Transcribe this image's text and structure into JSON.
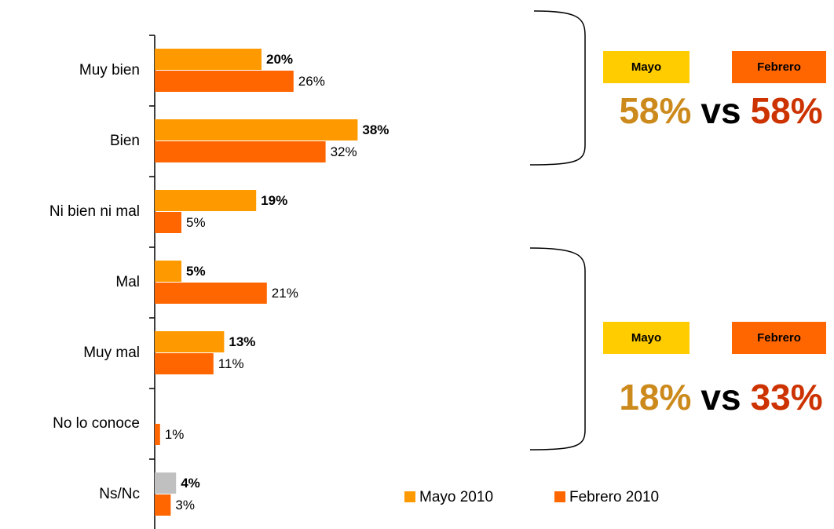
{
  "chart_data": {
    "type": "bar",
    "orientation": "horizontal",
    "categories": [
      "Muy bien",
      "Bien",
      "Ni bien ni mal",
      "Mal",
      "Muy mal",
      "No lo conoce",
      "Ns/Nc"
    ],
    "series": [
      {
        "name": "Mayo 2010",
        "color": "#ff9900",
        "colors": [
          "#ff9900",
          "#ff9900",
          "#ff9900",
          "#ff9900",
          "#ff9900",
          "#ff9900",
          "#c0c0c0"
        ],
        "values": [
          20,
          38,
          19,
          5,
          13,
          null,
          4
        ],
        "value_labels": [
          "20%",
          "38%",
          "19%",
          "5%",
          "13%",
          null,
          "4%"
        ]
      },
      {
        "name": "Febrero 2010",
        "color": "#ff6600",
        "values": [
          26,
          32,
          5,
          21,
          11,
          1,
          3
        ],
        "value_labels": [
          "26%",
          "32%",
          "5%",
          "21%",
          "11%",
          "1%",
          "3%"
        ]
      }
    ],
    "annotations": [
      {
        "mayo": "Mayo",
        "febrero": "Febrero",
        "mayo_total": "58%",
        "vs": "vs",
        "febrero_total": "58%"
      },
      {
        "mayo": "Mayo",
        "febrero": "Febrero",
        "mayo_total": "18%",
        "vs": "vs",
        "febrero_total": "33%"
      }
    ],
    "annotation_colors": {
      "mayo_box": "#ffcc00",
      "febrero_box": "#ff6600",
      "mayo_total": "#cc8a1c",
      "febrero_total": "#cc3300"
    }
  }
}
